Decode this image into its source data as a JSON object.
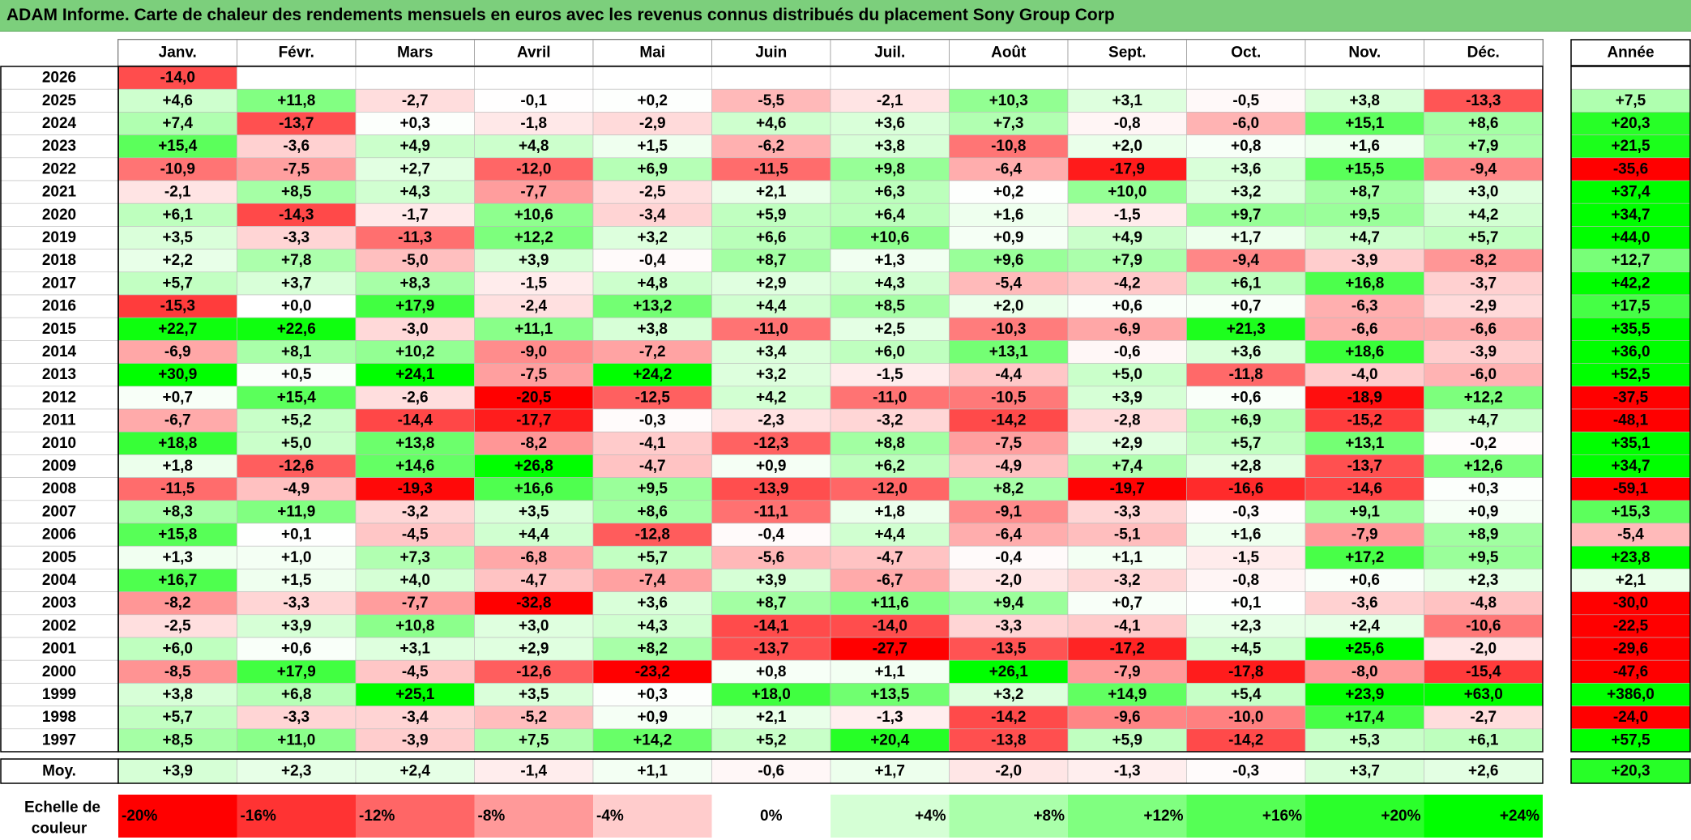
{
  "title": "ADAM Informe. Carte de chaleur des rendements mensuels en euros avec les revenus connus distribués du placement Sony Group Corp",
  "chart_data": {
    "type": "heatmap",
    "title": "ADAM Informe. Carte de chaleur des rendements mensuels en euros avec les revenus connus distribués du placement Sony Group Corp",
    "columns": [
      "Janv.",
      "Févr.",
      "Mars",
      "Avril",
      "Mai",
      "Juin",
      "Juil.",
      "Août",
      "Sept.",
      "Oct.",
      "Nov.",
      "Déc."
    ],
    "year_header": "Année",
    "rows": [
      {
        "year": "2026",
        "values": [
          "-14,0",
          null,
          null,
          null,
          null,
          null,
          null,
          null,
          null,
          null,
          null,
          null
        ],
        "annual": null
      },
      {
        "year": "2025",
        "values": [
          "+4,6",
          "+11,8",
          "-2,7",
          "-0,1",
          "+0,2",
          "-5,5",
          "-2,1",
          "+10,3",
          "+3,1",
          "-0,5",
          "+3,8",
          "-13,3"
        ],
        "annual": "+7,5"
      },
      {
        "year": "2024",
        "values": [
          "+7,4",
          "-13,7",
          "+0,3",
          "-1,8",
          "-2,9",
          "+4,6",
          "+3,6",
          "+7,3",
          "-0,8",
          "-6,0",
          "+15,1",
          "+8,6"
        ],
        "annual": "+20,3"
      },
      {
        "year": "2023",
        "values": [
          "+15,4",
          "-3,6",
          "+4,9",
          "+4,8",
          "+1,5",
          "-6,2",
          "+3,8",
          "-10,8",
          "+2,0",
          "+0,8",
          "+1,6",
          "+7,9"
        ],
        "annual": "+21,5"
      },
      {
        "year": "2022",
        "values": [
          "-10,9",
          "-7,5",
          "+2,7",
          "-12,0",
          "+6,9",
          "-11,5",
          "+9,8",
          "-6,4",
          "-17,9",
          "+3,6",
          "+15,5",
          "-9,4"
        ],
        "annual": "-35,6"
      },
      {
        "year": "2021",
        "values": [
          "-2,1",
          "+8,5",
          "+4,3",
          "-7,7",
          "-2,5",
          "+2,1",
          "+6,3",
          "+0,2",
          "+10,0",
          "+3,2",
          "+8,7",
          "+3,0"
        ],
        "annual": "+37,4"
      },
      {
        "year": "2020",
        "values": [
          "+6,1",
          "-14,3",
          "-1,7",
          "+10,6",
          "-3,4",
          "+5,9",
          "+6,4",
          "+1,6",
          "-1,5",
          "+9,7",
          "+9,5",
          "+4,2"
        ],
        "annual": "+34,7"
      },
      {
        "year": "2019",
        "values": [
          "+3,5",
          "-3,3",
          "-11,3",
          "+12,2",
          "+3,2",
          "+6,6",
          "+10,6",
          "+0,9",
          "+4,9",
          "+1,7",
          "+4,7",
          "+5,7"
        ],
        "annual": "+44,0"
      },
      {
        "year": "2018",
        "values": [
          "+2,2",
          "+7,8",
          "-5,0",
          "+3,9",
          "-0,4",
          "+8,7",
          "+1,3",
          "+9,6",
          "+7,9",
          "-9,4",
          "-3,9",
          "-8,2"
        ],
        "annual": "+12,7"
      },
      {
        "year": "2017",
        "values": [
          "+5,7",
          "+3,7",
          "+8,3",
          "-1,5",
          "+4,8",
          "+2,9",
          "+4,3",
          "-5,4",
          "-4,2",
          "+6,1",
          "+16,8",
          "-3,7"
        ],
        "annual": "+42,2"
      },
      {
        "year": "2016",
        "values": [
          "-15,3",
          "+0,0",
          "+17,9",
          "-2,4",
          "+13,2",
          "+4,4",
          "+8,5",
          "+2,0",
          "+0,6",
          "+0,7",
          "-6,3",
          "-2,9"
        ],
        "annual": "+17,5"
      },
      {
        "year": "2015",
        "values": [
          "+22,7",
          "+22,6",
          "-3,0",
          "+11,1",
          "+3,8",
          "-11,0",
          "+2,5",
          "-10,3",
          "-6,9",
          "+21,3",
          "-6,6",
          "-6,6"
        ],
        "annual": "+35,5"
      },
      {
        "year": "2014",
        "values": [
          "-6,9",
          "+8,1",
          "+10,2",
          "-9,0",
          "-7,2",
          "+3,4",
          "+6,0",
          "+13,1",
          "-0,6",
          "+3,6",
          "+18,6",
          "-3,9"
        ],
        "annual": "+36,0"
      },
      {
        "year": "2013",
        "values": [
          "+30,9",
          "+0,5",
          "+24,1",
          "-7,5",
          "+24,2",
          "+3,2",
          "-1,5",
          "-4,4",
          "+5,0",
          "-11,8",
          "-4,0",
          "-6,0"
        ],
        "annual": "+52,5"
      },
      {
        "year": "2012",
        "values": [
          "+0,7",
          "+15,4",
          "-2,6",
          "-20,5",
          "-12,5",
          "+4,2",
          "-11,0",
          "-10,5",
          "+3,9",
          "+0,6",
          "-18,9",
          "+12,2"
        ],
        "annual": "-37,5"
      },
      {
        "year": "2011",
        "values": [
          "-6,7",
          "+5,2",
          "-14,4",
          "-17,7",
          "-0,3",
          "-2,3",
          "-3,2",
          "-14,2",
          "-2,8",
          "+6,9",
          "-15,2",
          "+4,7"
        ],
        "annual": "-48,1"
      },
      {
        "year": "2010",
        "values": [
          "+18,8",
          "+5,0",
          "+13,8",
          "-8,2",
          "-4,1",
          "-12,3",
          "+8,8",
          "-7,5",
          "+2,9",
          "+5,7",
          "+13,1",
          "-0,2"
        ],
        "annual": "+35,1"
      },
      {
        "year": "2009",
        "values": [
          "+1,8",
          "-12,6",
          "+14,6",
          "+26,8",
          "-4,7",
          "+0,9",
          "+6,2",
          "-4,9",
          "+7,4",
          "+2,8",
          "-13,7",
          "+12,6"
        ],
        "annual": "+34,7"
      },
      {
        "year": "2008",
        "values": [
          "-11,5",
          "-4,9",
          "-19,3",
          "+16,6",
          "+9,5",
          "-13,9",
          "-12,0",
          "+8,2",
          "-19,7",
          "-16,6",
          "-14,6",
          "+0,3"
        ],
        "annual": "-59,1"
      },
      {
        "year": "2007",
        "values": [
          "+8,3",
          "+11,9",
          "-3,2",
          "+3,5",
          "+8,6",
          "-11,1",
          "+1,8",
          "-9,1",
          "-3,3",
          "-0,3",
          "+9,1",
          "+0,9"
        ],
        "annual": "+15,3"
      },
      {
        "year": "2006",
        "values": [
          "+15,8",
          "+0,1",
          "-4,5",
          "+4,4",
          "-12,8",
          "-0,4",
          "+4,4",
          "-6,4",
          "-5,1",
          "+1,6",
          "-7,9",
          "+8,9"
        ],
        "annual": "-5,4"
      },
      {
        "year": "2005",
        "values": [
          "+1,3",
          "+1,0",
          "+7,3",
          "-6,8",
          "+5,7",
          "-5,6",
          "-4,7",
          "-0,4",
          "+1,1",
          "-1,5",
          "+17,2",
          "+9,5"
        ],
        "annual": "+23,8"
      },
      {
        "year": "2004",
        "values": [
          "+16,7",
          "+1,5",
          "+4,0",
          "-4,7",
          "-7,4",
          "+3,9",
          "-6,7",
          "-2,0",
          "-3,2",
          "-0,8",
          "+0,6",
          "+2,3"
        ],
        "annual": "+2,1"
      },
      {
        "year": "2003",
        "values": [
          "-8,2",
          "-3,3",
          "-7,7",
          "-32,8",
          "+3,6",
          "+8,7",
          "+11,6",
          "+9,4",
          "+0,7",
          "+0,1",
          "-3,6",
          "-4,8"
        ],
        "annual": "-30,0"
      },
      {
        "year": "2002",
        "values": [
          "-2,5",
          "+3,9",
          "+10,8",
          "+3,0",
          "+4,3",
          "-14,1",
          "-14,0",
          "-3,3",
          "-4,1",
          "+2,3",
          "+2,4",
          "-10,6"
        ],
        "annual": "-22,5"
      },
      {
        "year": "2001",
        "values": [
          "+6,0",
          "+0,6",
          "+3,1",
          "+2,9",
          "+8,2",
          "-13,7",
          "-27,7",
          "-13,5",
          "-17,2",
          "+4,5",
          "+25,6",
          "-2,0"
        ],
        "annual": "-29,6"
      },
      {
        "year": "2000",
        "values": [
          "-8,5",
          "+17,9",
          "-4,5",
          "-12,6",
          "-23,2",
          "+0,8",
          "+1,1",
          "+26,1",
          "-7,9",
          "-17,8",
          "-8,0",
          "-15,4"
        ],
        "annual": "-47,6"
      },
      {
        "year": "1999",
        "values": [
          "+3,8",
          "+6,8",
          "+25,1",
          "+3,5",
          "+0,3",
          "+18,0",
          "+13,5",
          "+3,2",
          "+14,9",
          "+5,4",
          "+23,9",
          "+63,0"
        ],
        "annual": "+386,0"
      },
      {
        "year": "1998",
        "values": [
          "+5,7",
          "-3,3",
          "-3,4",
          "-5,2",
          "+0,9",
          "+2,1",
          "-1,3",
          "-14,2",
          "-9,6",
          "-10,0",
          "+17,4",
          "-2,7"
        ],
        "annual": "-24,0"
      },
      {
        "year": "1997",
        "values": [
          "+8,5",
          "+11,0",
          "-3,9",
          "+7,5",
          "+14,2",
          "+5,2",
          "+20,4",
          "-13,8",
          "+5,9",
          "-14,2",
          "+5,3",
          "+6,1"
        ],
        "annual": "+57,5"
      }
    ],
    "average": {
      "label": "Moy.",
      "values": [
        "+3,9",
        "+2,3",
        "+2,4",
        "-1,4",
        "+1,1",
        "-0,6",
        "+1,7",
        "-2,0",
        "-1,3",
        "-0,3",
        "+3,7",
        "+2,6"
      ],
      "annual": "+20,3"
    },
    "scale": {
      "label_line1": "Echelle de",
      "label_line2": "couleur",
      "steps": [
        "-20%",
        "-16%",
        "-12%",
        "-8%",
        "-4%",
        "0%",
        "+4%",
        "+8%",
        "+12%",
        "+16%",
        "+20%",
        "+24%"
      ]
    },
    "colors": {
      "negative": "#ff0000",
      "neutral": "#ffffff",
      "positive": "#00ff00",
      "title_bg": "#7ccf7c"
    }
  }
}
